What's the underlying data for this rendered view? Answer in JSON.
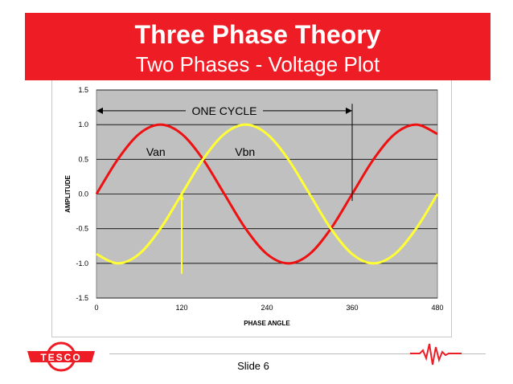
{
  "header": {
    "title": "Three Phase Theory",
    "subtitle": "Two Phases - Voltage Plot",
    "banner_color": "#ee1c25"
  },
  "footer": {
    "slide_label": "Slide 6",
    "logo_text": "TESCO"
  },
  "chart_data": {
    "type": "line",
    "xlabel": "PHASE ANGLE",
    "ylabel": "AMPLITUDE",
    "xlim": [
      0,
      480
    ],
    "ylim": [
      -1.5,
      1.5
    ],
    "x_ticks": [
      "0",
      "120",
      "240",
      "360",
      "480"
    ],
    "y_ticks": [
      "1.5",
      "1.0",
      "0.5",
      "0.0",
      "-0.5",
      "-1.0",
      "-1.5"
    ],
    "grid": true,
    "plot_background": "#c0c0c0",
    "x": [
      0,
      30,
      60,
      90,
      120,
      150,
      180,
      210,
      240,
      270,
      300,
      330,
      360,
      390,
      420,
      450,
      480
    ],
    "series": [
      {
        "name": "Van",
        "color": "#ee1111",
        "values": [
          0.0,
          0.5,
          0.866,
          1.0,
          0.866,
          0.5,
          0.0,
          -0.5,
          -0.866,
          -1.0,
          -0.866,
          -0.5,
          0.0,
          0.5,
          0.866,
          1.0,
          0.866
        ]
      },
      {
        "name": "Vbn",
        "color": "#ffff33",
        "values": [
          -0.866,
          -1.0,
          -0.866,
          -0.5,
          0.0,
          0.5,
          0.866,
          1.0,
          0.866,
          0.5,
          0.0,
          -0.5,
          -0.866,
          -1.0,
          -0.866,
          -0.5,
          0.0
        ]
      }
    ],
    "annotations": [
      {
        "text": "ONE CYCLE",
        "from_x": 0,
        "to_x": 360,
        "y": 1.2
      },
      {
        "text": "Van",
        "x": 70,
        "y": 0.55
      },
      {
        "text": "Vbn",
        "x": 195,
        "y": 0.55
      }
    ],
    "markers": [
      {
        "x": 360,
        "from_y": 1.3,
        "to_y": -0.1,
        "color": "#000000"
      },
      {
        "x": 120,
        "from_y": -1.15,
        "to_y": 0.0,
        "color": "#ffff33"
      }
    ]
  }
}
